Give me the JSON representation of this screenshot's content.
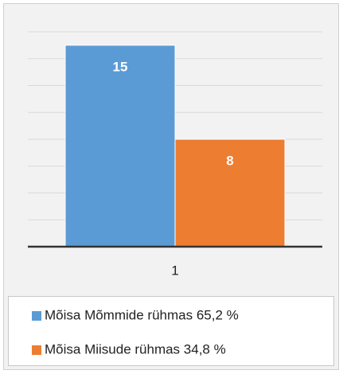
{
  "chart_data": {
    "type": "bar",
    "categories": [
      "1"
    ],
    "series": [
      {
        "name": "Mõisa Mõmmide rühmas 65,2 %",
        "color": "#5b9bd5",
        "values": [
          15
        ]
      },
      {
        "name": "Mõisa Miisude rühmas 34,8 %",
        "color": "#ed7d31",
        "values": [
          8
        ]
      }
    ],
    "ylim": [
      0,
      16
    ],
    "yticks": [
      0,
      2,
      4,
      6,
      8,
      10,
      12,
      14,
      16
    ],
    "grid": true,
    "legend": "bottom"
  }
}
